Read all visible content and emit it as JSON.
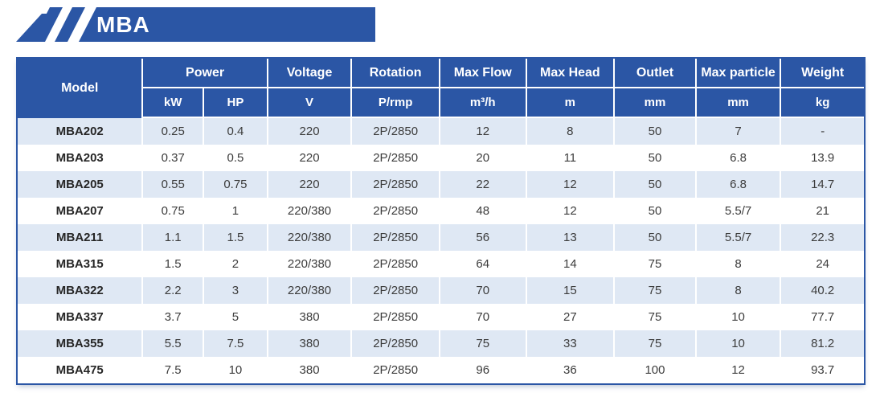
{
  "banner": {
    "title": "MBA",
    "accent_color": "#2b56a5"
  },
  "table": {
    "header": {
      "model": "Model",
      "groups": [
        {
          "label": "Power",
          "units": [
            "kW",
            "HP"
          ]
        },
        {
          "label": "Voltage",
          "units": [
            "V"
          ]
        },
        {
          "label": "Rotation",
          "units": [
            "P/rmp"
          ]
        },
        {
          "label": "Max Flow",
          "units": [
            "m³/h"
          ]
        },
        {
          "label": "Max Head",
          "units": [
            "m"
          ]
        },
        {
          "label": "Outlet",
          "units": [
            "mm"
          ]
        },
        {
          "label": "Max particle",
          "units": [
            "mm"
          ]
        },
        {
          "label": "Weight",
          "units": [
            "kg"
          ]
        }
      ]
    },
    "rows": [
      {
        "model": "MBA202",
        "values": [
          "0.25",
          "0.4",
          "220",
          "2P/2850",
          "12",
          "8",
          "50",
          "7",
          "-"
        ]
      },
      {
        "model": "MBA203",
        "values": [
          "0.37",
          "0.5",
          "220",
          "2P/2850",
          "20",
          "11",
          "50",
          "6.8",
          "13.9"
        ]
      },
      {
        "model": "MBA205",
        "values": [
          "0.55",
          "0.75",
          "220",
          "2P/2850",
          "22",
          "12",
          "50",
          "6.8",
          "14.7"
        ]
      },
      {
        "model": "MBA207",
        "values": [
          "0.75",
          "1",
          "220/380",
          "2P/2850",
          "48",
          "12",
          "50",
          "5.5/7",
          "21"
        ]
      },
      {
        "model": "MBA211",
        "values": [
          "1.1",
          "1.5",
          "220/380",
          "2P/2850",
          "56",
          "13",
          "50",
          "5.5/7",
          "22.3"
        ]
      },
      {
        "model": "MBA315",
        "values": [
          "1.5",
          "2",
          "220/380",
          "2P/2850",
          "64",
          "14",
          "75",
          "8",
          "24"
        ]
      },
      {
        "model": "MBA322",
        "values": [
          "2.2",
          "3",
          "220/380",
          "2P/2850",
          "70",
          "15",
          "75",
          "8",
          "40.2"
        ]
      },
      {
        "model": "MBA337",
        "values": [
          "3.7",
          "5",
          "380",
          "2P/2850",
          "70",
          "27",
          "75",
          "10",
          "77.7"
        ]
      },
      {
        "model": "MBA355",
        "values": [
          "5.5",
          "7.5",
          "380",
          "2P/2850",
          "75",
          "33",
          "75",
          "10",
          "81.2"
        ]
      },
      {
        "model": "MBA475",
        "values": [
          "7.5",
          "10",
          "380",
          "2P/2850",
          "96",
          "36",
          "100",
          "12",
          "93.7"
        ]
      }
    ]
  }
}
